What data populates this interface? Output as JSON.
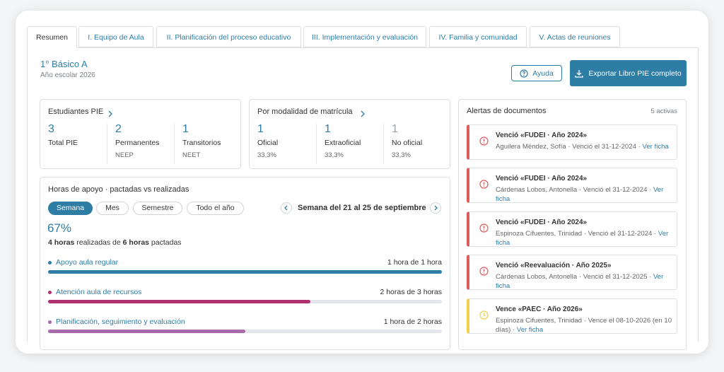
{
  "tabs": [
    "Resumen",
    "I. Equipo de Aula",
    "II. Planificación del proceso educativo",
    "III. Implementación y evaluación",
    "IV. Familia y comunidad",
    "V. Actas de reuniones"
  ],
  "header": {
    "title": "1° Básico A",
    "subtitle": "Año escolar 2026",
    "help": "Ayuda",
    "export": "Exportar Libro PIE completo"
  },
  "students": {
    "title": "Estudiantes PIE",
    "items": [
      {
        "value": 3,
        "label": "Total PIE"
      },
      {
        "value": 2,
        "label": "Permanentes",
        "sub": "NEEP"
      },
      {
        "value": 1,
        "label": "Transitorios",
        "sub": "NEET"
      }
    ]
  },
  "enrollment": {
    "title": "Por modalidad de matrícula",
    "items": [
      {
        "value": 1,
        "label": "Oficial",
        "sub": "33,3%"
      },
      {
        "value": 1,
        "label": "Extraoficial",
        "sub": "33,3%"
      },
      {
        "value": 1,
        "label": "No oficial",
        "sub": "33,3%",
        "color": "#9aa0a6"
      }
    ]
  },
  "hours": {
    "title": "Horas de apoyo · pactadas vs realizadas",
    "periods": [
      "Semana",
      "Mes",
      "Semestre",
      "Todo el año"
    ],
    "week": "Semana del 21 al 25 de septiembre",
    "percent": "67%",
    "summary": [
      "4 horas",
      " realizadas de ",
      "6 horas",
      " pactadas"
    ],
    "rows": [
      {
        "label": "Apoyo aula regular",
        "amount": "1 hora de 1 hora",
        "done": 1,
        "total": 1,
        "color": "#2e7da5"
      },
      {
        "label": "Atención aula de recursos",
        "amount": "2 horas de 3 horas",
        "done": 2,
        "total": 3,
        "color": "#b0306f"
      },
      {
        "label": "Planificación, seguimiento y evaluación",
        "amount": "1 hora de 2 horas",
        "done": 1,
        "total": 2,
        "color": "#a86aa9"
      }
    ]
  },
  "alerts": {
    "title": "Alertas de documentos",
    "count": "5 activas",
    "items": [
      {
        "title": "Venció «FUDEI · Año 2024»",
        "detail": "Aguilera Méndez, Sofía · Venció el 31-12-2024 · ",
        "link": "Ver ficha",
        "color": "#e05a5a"
      },
      {
        "title": "Venció «FUDEI · Año 2024»",
        "detail": "Cárdenas Lobos, Antonella · Venció el 31-12-2024 · ",
        "link": "Ver ficha",
        "color": "#e05a5a"
      },
      {
        "title": "Venció «FUDEI · Año 2024»",
        "detail": "Espinoza Cifuentes, Trinidad · Venció el 31-12-2024 · ",
        "link": "Ver ficha",
        "color": "#e05a5a"
      },
      {
        "title": "Venció «Reevaluación · Año 2025»",
        "detail": "Cárdenas Lobos, Antonella · Venció el 31-12-2025 · ",
        "link": "Ver ficha",
        "color": "#e05a5a"
      },
      {
        "title": "Vence «PAEC · Año 2026»",
        "detail": "Espinoza Cifuentes, Trinidad · Vence el 08-10-2026 (en 10 días) · ",
        "link": "Ver ficha",
        "color": "#f2cf4a"
      }
    ]
  }
}
